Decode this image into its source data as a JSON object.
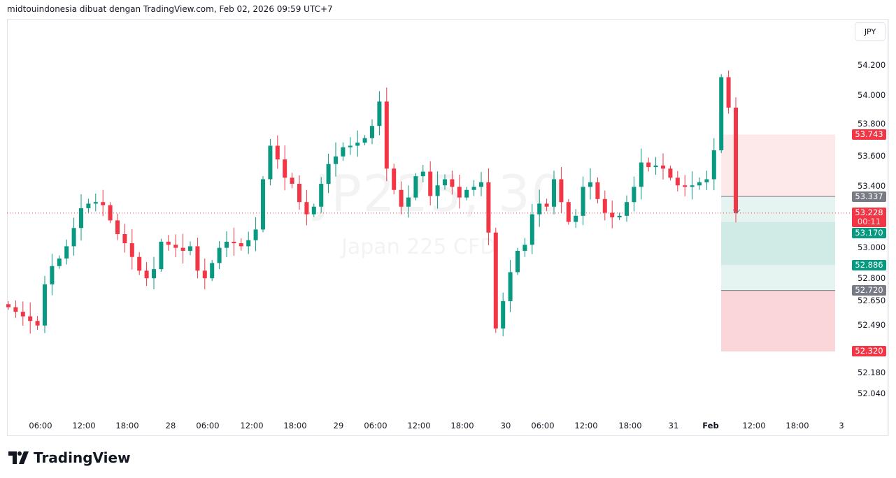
{
  "header": {
    "caption": "midtouindonesia dibuat dengan TradingView.com, Feb 02, 2026 09:59 UTC+7"
  },
  "watermark": {
    "symbol": "JP225, 30",
    "name": "Japan 225 CFD"
  },
  "currency_button": "JPY",
  "footer": {
    "brand": "TradingView"
  },
  "colors": {
    "up": "#089981",
    "down": "#f23645",
    "neutral": "#787b86",
    "stop_zone": "#fde8ea",
    "target_zone": "#e6f4f1",
    "target_dark": "#d0ebe5",
    "stop_dark": "#fad6da"
  },
  "chart_data": {
    "type": "candlestick",
    "timeframe": "30",
    "x_ticks": [
      "06:00",
      "12:00",
      "18:00",
      "28",
      "06:00",
      "12:00",
      "18:00",
      "29",
      "06:00",
      "12:00",
      "18:00",
      "30",
      "06:00",
      "12:00",
      "18:00",
      "31",
      "Feb",
      "12:00",
      "18:00",
      "3"
    ],
    "y_ticks": [
      "54.200",
      "54.000",
      "53.800",
      "53.600",
      "53.400",
      "53.000",
      "52.800",
      "52.650",
      "52.490",
      "52.180",
      "52.040"
    ],
    "first_open": 52.63,
    "closes": [
      52.61,
      52.58,
      52.55,
      52.52,
      52.49,
      52.76,
      52.88,
      52.93,
      53.01,
      53.13,
      53.26,
      53.29,
      53.3,
      53.28,
      53.18,
      53.09,
      53.03,
      52.94,
      52.85,
      52.8,
      52.86,
      53.04,
      53.02,
      53.0,
      52.98,
      53.01,
      52.85,
      52.8,
      52.9,
      53.0,
      53.04,
      53.03,
      53.01,
      53.05,
      53.12,
      53.45,
      53.67,
      53.58,
      53.46,
      53.42,
      53.3,
      53.22,
      53.27,
      53.42,
      53.55,
      53.6,
      53.66,
      53.67,
      53.69,
      53.72,
      53.8,
      53.96,
      53.52,
      53.38,
      53.27,
      53.33,
      53.47,
      53.5,
      53.34,
      53.41,
      53.45,
      53.4,
      53.33,
      53.38,
      53.4,
      53.43,
      53.1,
      52.47,
      52.65,
      52.84,
      52.98,
      53.02,
      53.22,
      53.29,
      53.27,
      53.45,
      53.3,
      53.17,
      53.21,
      53.4,
      53.43,
      53.32,
      53.23,
      53.2,
      53.21,
      53.3,
      53.4,
      53.56,
      53.53,
      53.54,
      53.52,
      53.46,
      53.41,
      53.4,
      53.41,
      53.43,
      53.45,
      53.64,
      54.12,
      53.92,
      53.228
    ],
    "last_price": {
      "value": "53.228",
      "countdown": "00:11"
    },
    "position_tool": {
      "levels": [
        {
          "value": "53.743",
          "kind": "down"
        },
        {
          "value": "53.337",
          "kind": "neutral"
        },
        {
          "value": "53.170",
          "kind": "up"
        },
        {
          "value": "52.886",
          "kind": "up"
        },
        {
          "value": "52.720",
          "kind": "neutral"
        },
        {
          "value": "52.320",
          "kind": "down"
        }
      ]
    }
  }
}
